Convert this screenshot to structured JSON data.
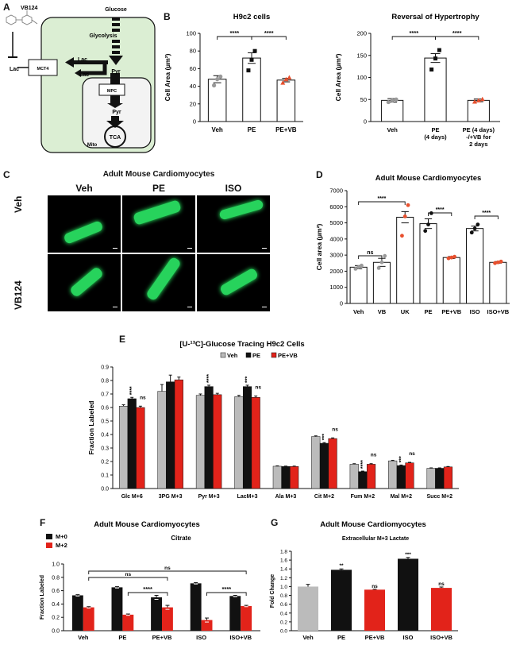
{
  "panel_letters": {
    "a": "A",
    "b": "B",
    "c": "C",
    "d": "D",
    "e": "E",
    "f": "F",
    "g": "G"
  },
  "diagram_a": {
    "compound": "VB124",
    "lac_out": "Lac",
    "transporter": "MCT4",
    "glucose": "Glucose",
    "glycolysis": "Glycolysis",
    "lac1": "Lac",
    "lac2": "Lac",
    "pyr_cyto": "Pyr",
    "mpc": "MPC",
    "pyr_mito": "Pyr",
    "tca": "TCA",
    "mito": "Mito",
    "colors": {
      "cell": "#dbeed3",
      "mito": "#f3f3f3"
    }
  },
  "panel_c": {
    "title": "Adult Mouse Cardiomyocytes",
    "columns": [
      "Veh",
      "PE",
      "ISO"
    ],
    "rows": [
      "Veh",
      "VB124"
    ]
  },
  "chart_data": [
    {
      "id": "B1",
      "type": "bar",
      "title": "H9c2 cells",
      "ylabel": "Cell Area (µm²)",
      "categories": [
        "Veh",
        "PE",
        "PE+VB"
      ],
      "values": [
        48,
        72,
        47
      ],
      "errors": [
        4,
        6,
        2
      ],
      "points": [
        [
          41,
          48,
          51
        ],
        [
          58,
          70,
          80
        ],
        [
          44,
          48,
          50
        ]
      ],
      "ylim": [
        0,
        100
      ],
      "yticks": [
        0,
        20,
        40,
        60,
        80,
        100
      ],
      "significance": [
        {
          "from": 0,
          "to": 1,
          "label": "****"
        },
        {
          "from": 1,
          "to": 2,
          "label": "****"
        }
      ],
      "colors": {
        "bar": "#ffffff",
        "points": [
          "#999999",
          "#111111",
          "#e8502e"
        ]
      }
    },
    {
      "id": "B2",
      "type": "bar",
      "title": "Reversal of Hypertrophy",
      "ylabel": "Cell Area (µm²)",
      "categories": [
        "Veh",
        "PE\n(4 days)",
        "PE (4 days)\n-/+VB for\n2 days"
      ],
      "values": [
        48,
        144,
        48
      ],
      "errors": [
        4,
        10,
        3
      ],
      "points": [
        [
          44,
          48,
          50
        ],
        [
          118,
          143,
          162
        ],
        [
          45,
          48,
          51
        ]
      ],
      "ylim": [
        0,
        200
      ],
      "yticks": [
        0,
        50,
        100,
        150,
        200
      ],
      "significance": [
        {
          "from": 0,
          "to": 1,
          "label": "****"
        },
        {
          "from": 1,
          "to": 2,
          "label": "****"
        }
      ],
      "colors": {
        "bar": "#ffffff",
        "points": [
          "#999999",
          "#111111",
          "#e8502e"
        ]
      }
    },
    {
      "id": "D",
      "type": "bar",
      "title": "Adult Mouse Cardiomyocytes",
      "ylabel": "Cell area (µm²)",
      "categories": [
        "Veh",
        "VB",
        "UK",
        "PE",
        "PE+VB",
        "ISO",
        "ISO+VB"
      ],
      "values": [
        2250,
        2550,
        5350,
        4950,
        2850,
        4650,
        2550
      ],
      "errors": [
        100,
        250,
        350,
        300,
        60,
        150,
        50
      ],
      "points": [
        [
          2150,
          2250,
          2350
        ],
        [
          2200,
          2550,
          2950
        ],
        [
          4200,
          5400,
          6100
        ],
        [
          4500,
          4900,
          5600
        ],
        [
          2800,
          2850,
          2900
        ],
        [
          4400,
          4650,
          4900
        ],
        [
          2500,
          2550,
          2600
        ]
      ],
      "point_colors": [
        "#999999",
        "#999999",
        "#e8502e",
        "#111111",
        "#e8502e",
        "#111111",
        "#e8502e"
      ],
      "ylim": [
        0,
        7000
      ],
      "yticks": [
        0,
        1000,
        2000,
        3000,
        4000,
        5000,
        6000,
        7000
      ],
      "significance": [
        {
          "from": 0,
          "to": 1,
          "label": "ns"
        },
        {
          "from": 0,
          "to": 2,
          "label": "****"
        },
        {
          "from": 3,
          "to": 4,
          "label": "****"
        },
        {
          "from": 5,
          "to": 6,
          "label": "****"
        }
      ]
    },
    {
      "id": "E",
      "type": "bar",
      "title": "[U-¹³C]-Glucose Tracing H9c2 Cells",
      "ylabel": "Fraction Labeled",
      "categories": [
        "Glc M+6",
        "3PG M+3",
        "Pyr M+3",
        "LacM+3",
        "Ala M+3",
        "Cit M+2",
        "Fum M+2",
        "Mal M+2",
        "Succ M+2"
      ],
      "series": [
        {
          "name": "Veh",
          "values": [
            0.61,
            0.72,
            0.69,
            0.68,
            0.165,
            0.385,
            0.18,
            0.205,
            0.15
          ],
          "errors": [
            0.01,
            0.05,
            0.01,
            0.01,
            0.003,
            0.005,
            0.004,
            0.004,
            0.003
          ]
        },
        {
          "name": "PE",
          "values": [
            0.665,
            0.79,
            0.755,
            0.755,
            0.163,
            0.335,
            0.125,
            0.17,
            0.15
          ],
          "errors": [
            0.01,
            0.05,
            0.01,
            0.01,
            0.003,
            0.005,
            0.004,
            0.004,
            0.003
          ]
        },
        {
          "name": "PE+VB",
          "values": [
            0.6,
            0.805,
            0.695,
            0.675,
            0.163,
            0.37,
            0.18,
            0.19,
            0.16
          ],
          "errors": [
            0.01,
            0.02,
            0.01,
            0.01,
            0.003,
            0.005,
            0.004,
            0.004,
            0.003
          ]
        }
      ],
      "annotations": [
        {
          "cat": 0,
          "series": 1,
          "label": "****"
        },
        {
          "cat": 0,
          "series": 2,
          "label": "ns"
        },
        {
          "cat": 2,
          "series": 1,
          "label": "****"
        },
        {
          "cat": 3,
          "series": 1,
          "label": "***"
        },
        {
          "cat": 3,
          "series": 2,
          "label": "ns"
        },
        {
          "cat": 5,
          "series": 1,
          "label": "***"
        },
        {
          "cat": 5,
          "series": 2,
          "label": "ns"
        },
        {
          "cat": 6,
          "series": 1,
          "label": "****"
        },
        {
          "cat": 6,
          "series": 2,
          "label": "ns"
        },
        {
          "cat": 7,
          "series": 1,
          "label": "***"
        },
        {
          "cat": 7,
          "series": 2,
          "label": "ns"
        }
      ],
      "ylim": [
        0,
        0.9
      ],
      "yticks": [
        0,
        0.1,
        0.2,
        0.3,
        0.4,
        0.5,
        0.6,
        0.7,
        0.8,
        0.9
      ],
      "legend": "top",
      "colors": {
        "Veh": "#bbbbbb",
        "PE": "#111111",
        "PE+VB": "#e2231a"
      }
    },
    {
      "id": "F",
      "type": "bar",
      "title": "Adult Mouse Cardiomyocytes",
      "subtitle": "Citrate",
      "ylabel": "Fraction Labeled",
      "categories": [
        "Veh",
        "PE",
        "PE+VB",
        "ISO",
        "ISO+VB"
      ],
      "series": [
        {
          "name": "M+0",
          "values": [
            0.53,
            0.65,
            0.5,
            0.71,
            0.52
          ],
          "errors": [
            0.01,
            0.01,
            0.03,
            0.01,
            0.01
          ]
        },
        {
          "name": "M+2",
          "values": [
            0.35,
            0.24,
            0.35,
            0.16,
            0.37
          ],
          "errors": [
            0.01,
            0.01,
            0.03,
            0.03,
            0.01
          ]
        }
      ],
      "significance": [
        {
          "from": 0,
          "to": 2,
          "label": "ns"
        },
        {
          "from": 0,
          "to": 4,
          "label": "ns"
        },
        {
          "from": 1,
          "to": 2,
          "label": "****"
        },
        {
          "from": 3,
          "to": 4,
          "label": "****"
        }
      ],
      "ylim": [
        0,
        1.0
      ],
      "yticks": [
        0,
        0.2,
        0.4,
        0.6,
        0.8,
        1.0
      ],
      "legend": "top-left",
      "colors": {
        "M+0": "#111111",
        "M+2": "#e2231a"
      }
    },
    {
      "id": "G",
      "type": "bar",
      "title": "Adult Mouse Cardiomyocytes",
      "subtitle": "Extracellular M+3 Lactate",
      "ylabel": "Fold Change",
      "categories": [
        "Veh",
        "PE",
        "PE+VB",
        "ISO",
        "ISO+VB"
      ],
      "values": [
        1.0,
        1.38,
        0.93,
        1.63,
        0.97
      ],
      "errors": [
        0.05,
        0.02,
        0.01,
        0.03,
        0.02
      ],
      "bar_colors": [
        "#bbbbbb",
        "#111111",
        "#e2231a",
        "#111111",
        "#e2231a"
      ],
      "annotations": [
        "",
        "**",
        "ns",
        "***",
        "ns"
      ],
      "ylim": [
        0,
        1.8
      ],
      "yticks": [
        0,
        0.2,
        0.4,
        0.6,
        0.8,
        1.0,
        1.2,
        1.4,
        1.6,
        1.8
      ]
    }
  ]
}
